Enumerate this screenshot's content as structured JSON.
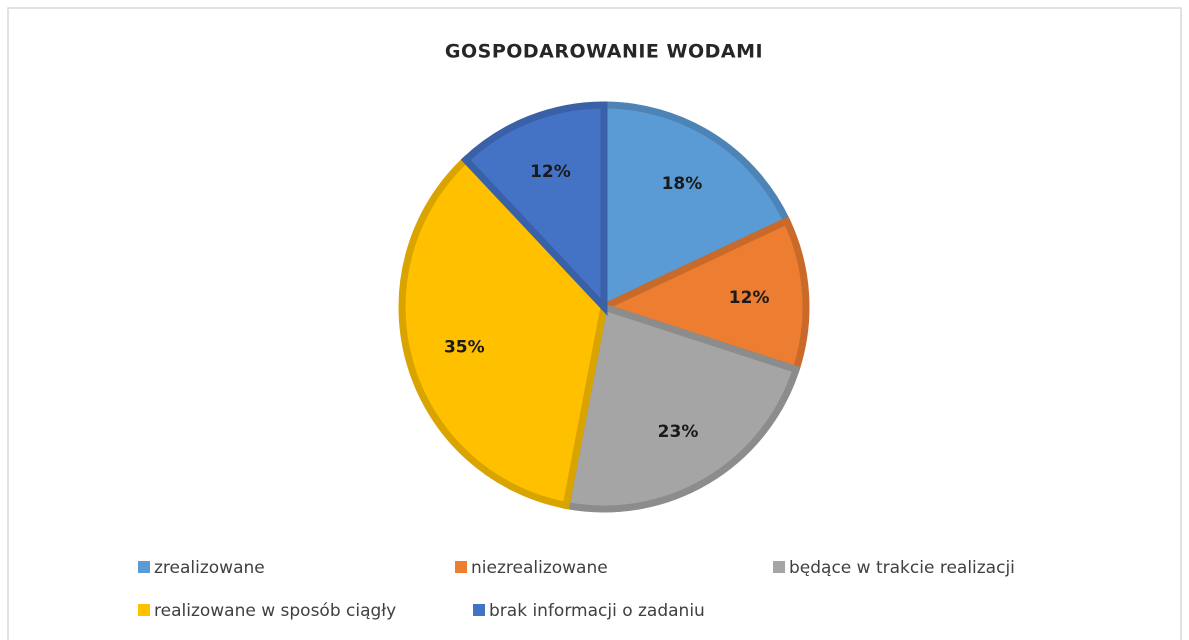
{
  "chart_data": {
    "type": "pie",
    "title": "GOSPODAROWANIE WODAMI",
    "categories": [
      "zrealizowane",
      "niezrealizowane",
      "będące w trakcie realizacji",
      "realizowane w sposób ciągły",
      "brak informacji o zadaniu"
    ],
    "values": [
      18,
      12,
      23,
      35,
      12
    ],
    "value_labels": [
      "18%",
      "12%",
      "23%",
      "35%",
      "12%"
    ],
    "colors": [
      "#5b9bd5",
      "#ed7d31",
      "#a5a5a5",
      "#ffc000",
      "#4472c4"
    ],
    "legend": "bottom"
  }
}
